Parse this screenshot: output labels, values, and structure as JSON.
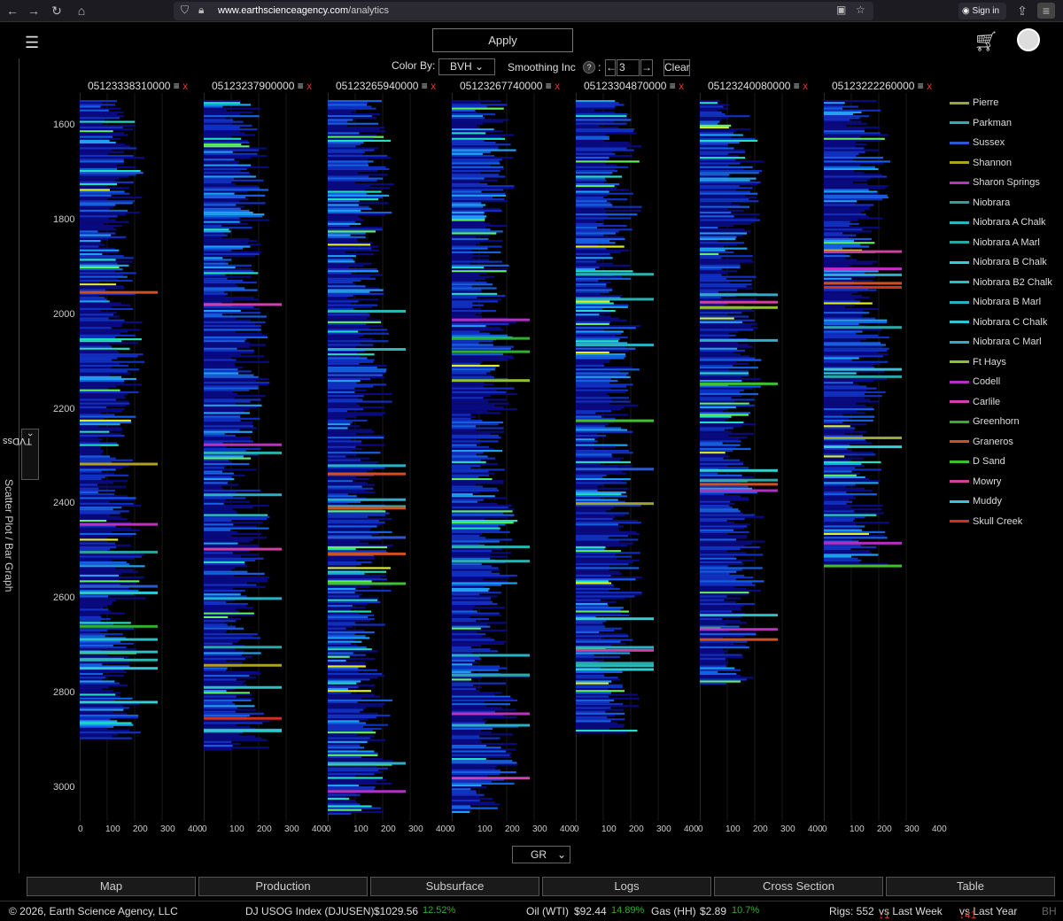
{
  "browser": {
    "url_host": "www.earthscienceagency.com",
    "url_path": "/analytics",
    "sign_in": "Sign in"
  },
  "header": {
    "apply": "Apply"
  },
  "toolbar": {
    "color_by_label": "Color By:",
    "color_by_value": "BVH",
    "smoothing_label": "Smoothing Inc",
    "smoothing_help": "?",
    "smoothing_value": "3",
    "clear": "Clear"
  },
  "side": {
    "tab": "Scatter Plot / Bar Graph",
    "axis": "TVDss"
  },
  "wells": [
    {
      "id": "05123338310000"
    },
    {
      "id": "05123237900000"
    },
    {
      "id": "05123265940000"
    },
    {
      "id": "05123267740000"
    },
    {
      "id": "05123304870000"
    },
    {
      "id": "05123240080000"
    },
    {
      "id": "05123222260000"
    }
  ],
  "depth_ticks": [
    "1600",
    "1800",
    "2000",
    "2200",
    "2400",
    "2600",
    "2800",
    "3000"
  ],
  "x_ticks": [
    "0",
    "100",
    "200",
    "300",
    "400"
  ],
  "x_curve": "GR",
  "legend": [
    {
      "name": "Pierre",
      "color": "#9aa82a"
    },
    {
      "name": "Parkman",
      "color": "#2ab0b0"
    },
    {
      "name": "Sussex",
      "color": "#2a5ad0"
    },
    {
      "name": "Shannon",
      "color": "#b0a020"
    },
    {
      "name": "Sharon Springs",
      "color": "#c030c0"
    },
    {
      "name": "Niobrara",
      "color": "#2aa0a0"
    },
    {
      "name": "Niobrara A Chalk",
      "color": "#2ab8b8"
    },
    {
      "name": "Niobrara A Marl",
      "color": "#2aa8a8"
    },
    {
      "name": "Niobrara B Chalk",
      "color": "#30d0d0"
    },
    {
      "name": "Niobrara B2 Chalk",
      "color": "#2ac0c0"
    },
    {
      "name": "Niobrara B Marl",
      "color": "#2ab0c0"
    },
    {
      "name": "Niobrara C Chalk",
      "color": "#30c8d0"
    },
    {
      "name": "Niobrara C Marl",
      "color": "#2ab0c8"
    },
    {
      "name": "Ft Hays",
      "color": "#90c030"
    },
    {
      "name": "Codell",
      "color": "#b030c0"
    },
    {
      "name": "Carlile",
      "color": "#d040b0"
    },
    {
      "name": "Greenhorn",
      "color": "#30b030"
    },
    {
      "name": "Graneros",
      "color": "#d05020"
    },
    {
      "name": "D Sand",
      "color": "#40c030"
    },
    {
      "name": "Mowry",
      "color": "#d040a0"
    },
    {
      "name": "Muddy",
      "color": "#40c0d0"
    },
    {
      "name": "Skull Creek",
      "color": "#d03020"
    }
  ],
  "tabs": [
    "Map",
    "Production",
    "Subsurface",
    "Logs",
    "Cross Section",
    "Table"
  ],
  "footer": {
    "copyright": "© 2026, Earth Science Agency, LLC",
    "index_label": "DJ USOG Index (DJUSEN)",
    "index_value": "$1029.56",
    "index_change": "12.52%",
    "oil_label": "Oil (WTI)",
    "oil_value": "$92.44",
    "oil_change": "14.89%",
    "gas_label": "Gas (HH)",
    "gas_value": "$2.89",
    "gas_change": "10.7%",
    "rigs_label": "Rigs: 552",
    "rigs_week": "↓1 vs Last Week",
    "rigs_year": "↓41 vs Last Year",
    "rigs_suffix": "BH"
  }
}
